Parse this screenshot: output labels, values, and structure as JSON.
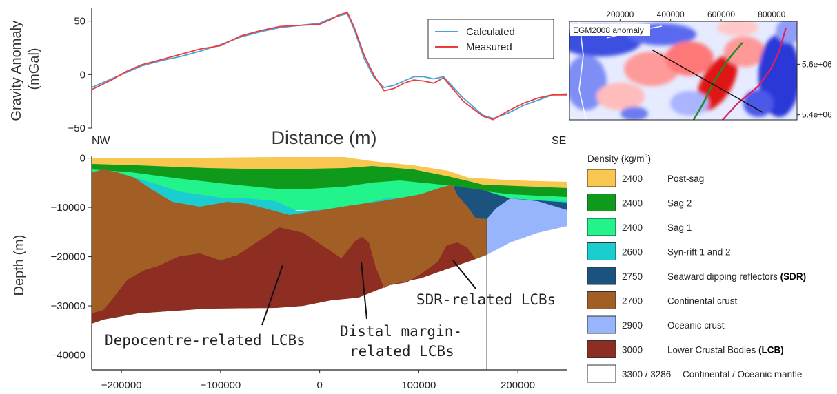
{
  "chart_data": [
    {
      "type": "line",
      "ylabel": "Gravity Anomaly\n(mGal)",
      "ylabel_lines": [
        "Gravity Anomaly",
        "(mGal)"
      ],
      "xlabel": "Distance (m)",
      "xlim": [
        -230000,
        250000
      ],
      "ylim": [
        -50,
        62
      ],
      "yticks": [
        "50",
        "0",
        "−50"
      ],
      "ytick_values": [
        50,
        0,
        -50
      ],
      "end_labels": {
        "left": "NW",
        "right": "SE"
      },
      "legend_position": "top-right",
      "series": [
        {
          "name": "Calculated",
          "color": "#4aa3d8",
          "x": [
            -230000,
            -210000,
            -195000,
            -180000,
            -160000,
            -140000,
            -120000,
            -100000,
            -80000,
            -60000,
            -40000,
            -20000,
            0,
            10000,
            20000,
            28000,
            35000,
            45000,
            55000,
            65000,
            75000,
            85000,
            95000,
            105000,
            115000,
            125000,
            135000,
            145000,
            155000,
            165000,
            175000,
            190000,
            205000,
            220000,
            235000,
            250000
          ],
          "values": [
            -12,
            -4,
            2,
            8,
            13,
            17,
            22,
            28,
            35,
            40,
            44,
            46,
            48,
            52,
            55,
            57,
            42,
            15,
            -3,
            -12,
            -10,
            -6,
            -2,
            -2,
            -4,
            -2,
            -12,
            -22,
            -30,
            -38,
            -41,
            -36,
            -29,
            -24,
            -19,
            -18
          ]
        },
        {
          "name": "Measured",
          "color": "#ee3b3b",
          "x": [
            -230000,
            -210000,
            -195000,
            -180000,
            -160000,
            -140000,
            -120000,
            -100000,
            -80000,
            -60000,
            -40000,
            -20000,
            0,
            10000,
            20000,
            28000,
            35000,
            45000,
            55000,
            65000,
            75000,
            85000,
            95000,
            105000,
            115000,
            125000,
            135000,
            145000,
            155000,
            165000,
            175000,
            190000,
            205000,
            220000,
            235000,
            250000
          ],
          "values": [
            -14,
            -5,
            3,
            9,
            14,
            19,
            24,
            27,
            36,
            41,
            45,
            46,
            47,
            51,
            56,
            58,
            44,
            18,
            -1,
            -15,
            -13,
            -8,
            -5,
            -6,
            -8,
            -3,
            -14,
            -25,
            -32,
            -39,
            -42,
            -34,
            -27,
            -22,
            -19,
            -19
          ]
        }
      ]
    },
    {
      "type": "area",
      "ylabel": "Depth (m)",
      "xlim": [
        -230000,
        250000
      ],
      "ylim": [
        -43000,
        500
      ],
      "xticks": [
        "−200000",
        "−100000",
        "0",
        "100000",
        "200000"
      ],
      "xtick_values": [
        -200000,
        -100000,
        0,
        100000,
        200000
      ],
      "yticks": [
        "0",
        "−10000",
        "−20000",
        "−30000",
        "−40000"
      ],
      "ytick_values": [
        0,
        -10000,
        -20000,
        -30000,
        -40000
      ],
      "boundary_x": 170000,
      "annotations": [
        {
          "text": "Depocentre-related LCBs",
          "lines": [
            "Depocentre-related LCBs"
          ]
        },
        {
          "text": "Distal margin-\nrelated LCBs",
          "lines": [
            "Distal margin-",
            "related LCBs"
          ]
        },
        {
          "text": "SDR-related LCBs",
          "lines": [
            "SDR-related LCBs"
          ]
        }
      ]
    },
    {
      "type": "heatmap",
      "title": "EGM2008 anomaly",
      "xticks": [
        "200000",
        "400000",
        "600000",
        "800000"
      ],
      "xtick_values": [
        200000,
        400000,
        600000,
        800000
      ],
      "yticks": [
        "5.6e+06",
        "5.4e+06"
      ],
      "ytick_values": [
        5600000,
        5400000
      ],
      "xlim": [
        0,
        900000
      ],
      "ylim": [
        5380000,
        5770000
      ]
    }
  ],
  "legend": {
    "calculated": "Calculated",
    "measured": "Measured"
  },
  "density_legend": {
    "title": "Density (kg/m",
    "title_sup": "3",
    "title_end": ")",
    "items": [
      {
        "value": "2400",
        "label": "Post-sag",
        "bold": "",
        "color": "#f8c750"
      },
      {
        "value": "2400",
        "label": "Sag 2",
        "bold": "",
        "color": "#0f9a1c"
      },
      {
        "value": "2400",
        "label": "Sag 1",
        "bold": "",
        "color": "#22f38a"
      },
      {
        "value": "2600",
        "label": "Syn-rift 1 and 2",
        "bold": "",
        "color": "#1ccdd0"
      },
      {
        "value": "2750",
        "label": "Seaward dipping reflectors ",
        "bold": "(SDR)",
        "color": "#1b527e"
      },
      {
        "value": "2700",
        "label": "Continental crust",
        "bold": "",
        "color": "#a15f26"
      },
      {
        "value": "2900",
        "label": "Oceanic crust",
        "bold": "",
        "color": "#96b5fb"
      },
      {
        "value": "3000",
        "label": "Lower Crustal Bodies ",
        "bold": "(LCB)",
        "color": "#8e2d21"
      },
      {
        "value": "3300 / 3286",
        "label": "Continental / Oceanic mantle",
        "bold": "",
        "color": "#ffffff"
      }
    ]
  }
}
